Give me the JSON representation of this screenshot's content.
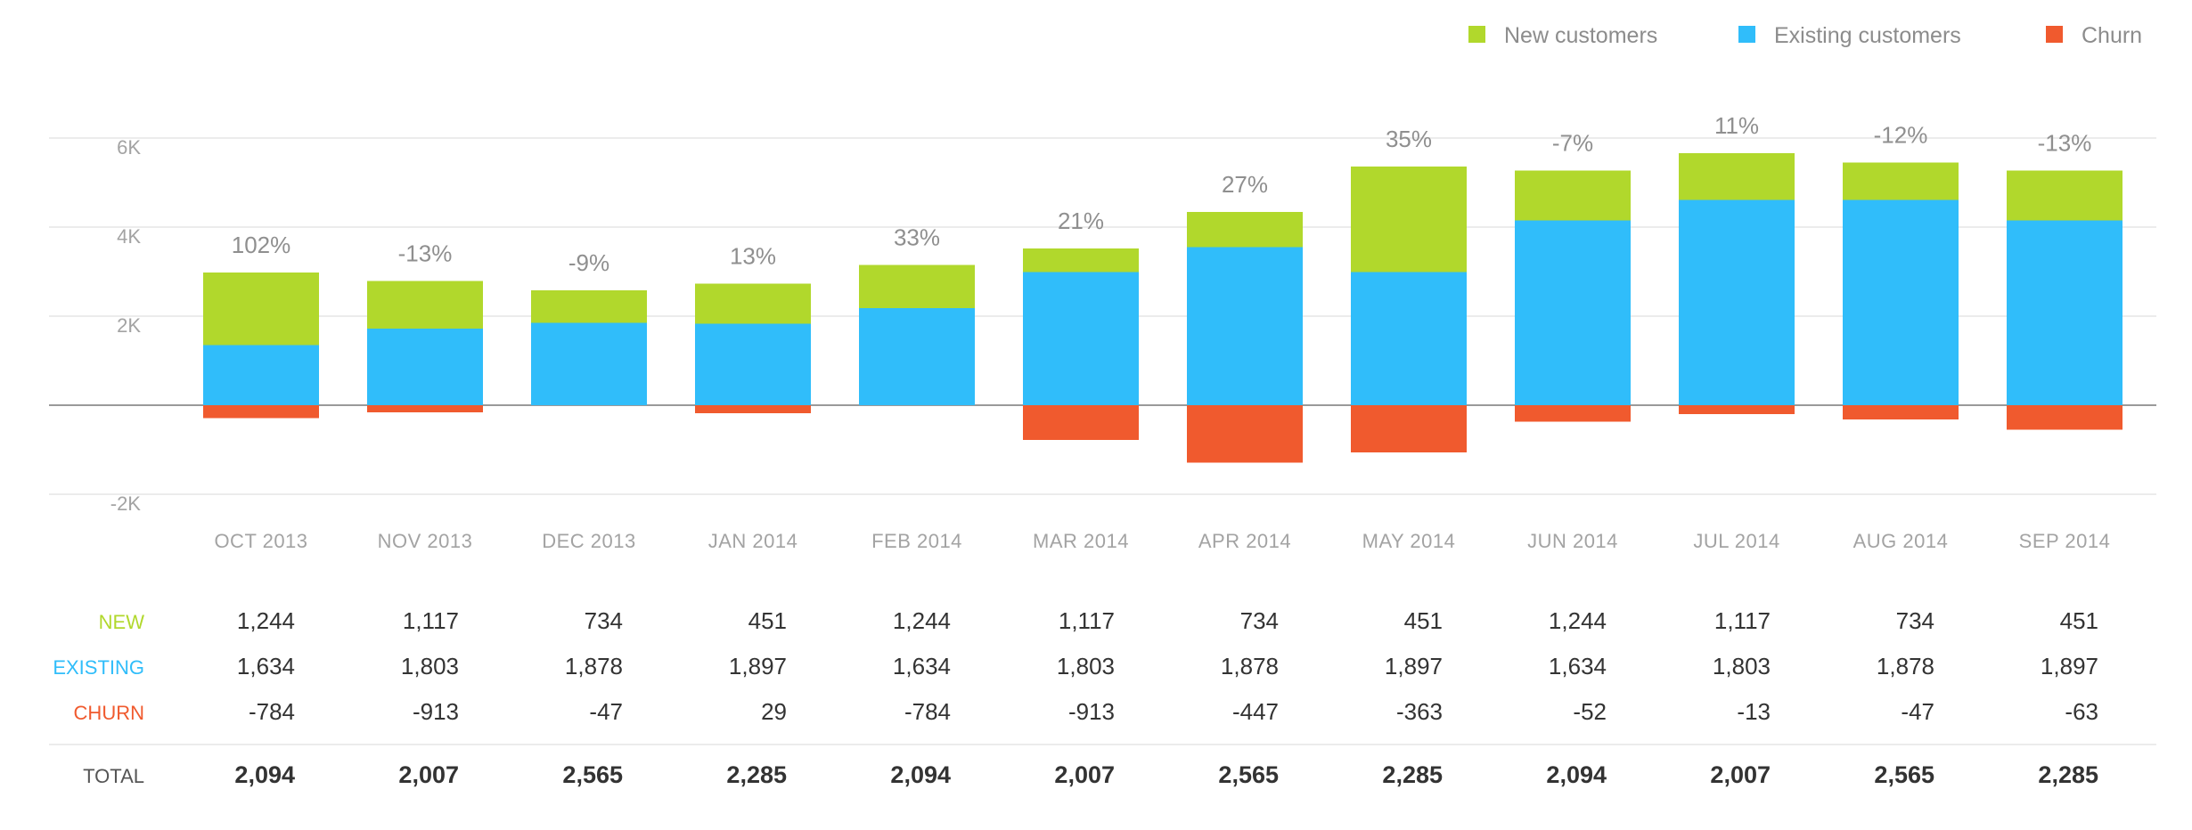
{
  "colors": {
    "new": "#b1d82c",
    "existing": "#30bdfa",
    "churn": "#f05a2e",
    "grid": "#e6e6e6",
    "baseline": "#9a9a9a"
  },
  "legend": [
    {
      "name": "New customers",
      "color": "#b1d82c"
    },
    {
      "name": "Existing customers",
      "color": "#30bdfa"
    },
    {
      "name": "Churn",
      "color": "#f05a2e"
    }
  ],
  "chart_data": {
    "type": "bar",
    "stacked": true,
    "categories": [
      "OCT 2013",
      "NOV 2013",
      "DEC 2013",
      "JAN 2014",
      "FEB 2014",
      "MAR 2014",
      "APR 2014",
      "MAY 2014",
      "JUN 2014",
      "JUL 2014",
      "AUG 2014",
      "SEP 2014"
    ],
    "series": [
      {
        "name": "Existing customers",
        "color": "#30bdfa",
        "values": [
          1350,
          1720,
          1850,
          1830,
          2180,
          2990,
          3550,
          2990,
          4150,
          4610,
          4610,
          4150
        ]
      },
      {
        "name": "New customers",
        "color": "#b1d82c",
        "values": [
          1630,
          1070,
          730,
          900,
          970,
          530,
          790,
          2370,
          1120,
          1050,
          840,
          1120
        ]
      },
      {
        "name": "Churn",
        "color": "#f05a2e",
        "values": [
          -290,
          -160,
          0,
          -180,
          0,
          -780,
          -1290,
          -1060,
          -370,
          -200,
          -320,
          -550
        ]
      }
    ],
    "percent_labels": [
      "102%",
      "-13%",
      "-9%",
      "13%",
      "33%",
      "21%",
      "27%",
      "35%",
      "-7%",
      "11%",
      "-12%",
      "-13%"
    ],
    "ylim": [
      -2000,
      6000
    ],
    "yticks": [
      {
        "value": 6000,
        "label": "6K"
      },
      {
        "value": 4000,
        "label": "4K"
      },
      {
        "value": 2000,
        "label": "2K"
      },
      {
        "value": 0,
        "label": ""
      },
      {
        "value": -2000,
        "label": "-2K"
      }
    ],
    "grid": true,
    "legend_position": "top-right",
    "title": "",
    "xlabel": "",
    "ylabel": ""
  },
  "table": {
    "rows": [
      {
        "label": "NEW",
        "color": "#b1d82c",
        "values": [
          "1,244",
          "1,117",
          "734",
          "451",
          "1,244",
          "1,117",
          "734",
          "451",
          "1,244",
          "1,117",
          "734",
          "451"
        ]
      },
      {
        "label": "EXISTING",
        "color": "#30bdfa",
        "values": [
          "1,634",
          "1,803",
          "1,878",
          "1,897",
          "1,634",
          "1,803",
          "1,878",
          "1,897",
          "1,634",
          "1,803",
          "1,878",
          "1,897"
        ]
      },
      {
        "label": "CHURN",
        "color": "#f05a2e",
        "values": [
          "-784",
          "-913",
          "-47",
          "29",
          "-784",
          "-913",
          "-447",
          "-363",
          "-52",
          "-13",
          "-47",
          "-63"
        ]
      }
    ],
    "total": {
      "label": "TOTAL",
      "values": [
        "2,094",
        "2,007",
        "2,565",
        "2,285",
        "2,094",
        "2,007",
        "2,565",
        "2,285",
        "2,094",
        "2,007",
        "2,565",
        "2,285"
      ]
    }
  }
}
